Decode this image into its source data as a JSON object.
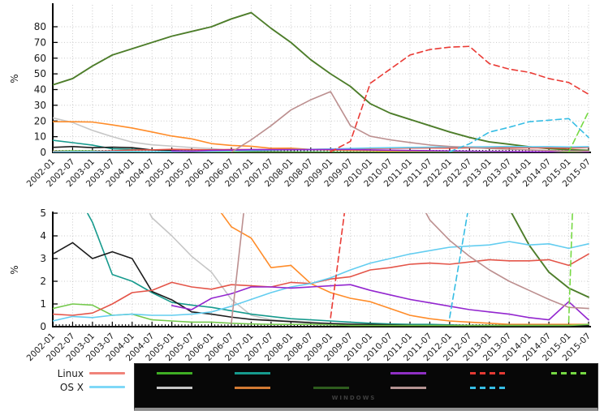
{
  "figure": {
    "background": "#ffffff",
    "axis_color": "#000000",
    "grid_color": "#c9c9c9"
  },
  "chart_data": {
    "type": "line",
    "title": "",
    "categories": [
      "2002-01",
      "2002-07",
      "2003-01",
      "2003-07",
      "2004-01",
      "2004-07",
      "2005-01",
      "2005-07",
      "2006-01",
      "2006-07",
      "2007-01",
      "2007-07",
      "2008-01",
      "2008-07",
      "2009-01",
      "2009-07",
      "2010-01",
      "2010-07",
      "2011-01",
      "2011-07",
      "2012-01",
      "2012-07",
      "2013-01",
      "2013-07",
      "2014-01",
      "2014-07",
      "2015-01",
      "2015-07"
    ],
    "x_tick_rotation": -45,
    "panels": [
      {
        "id": "top",
        "ylabel": "%",
        "ylim": [
          0,
          94
        ],
        "yticks": [
          0,
          10,
          20,
          30,
          40,
          50,
          60,
          70,
          80
        ],
        "grid": true,
        "legend": "none"
      },
      {
        "id": "bottom",
        "ylabel": "%",
        "ylim": [
          0,
          5
        ],
        "yticks": [
          0,
          1,
          2,
          3,
          4,
          5
        ],
        "grid": true,
        "legend": "none"
      }
    ],
    "series": [
      {
        "name": "green-dark",
        "color": "#4d7d2a",
        "dash": false,
        "values": [
          43,
          47,
          55,
          62,
          66,
          70,
          74,
          77,
          80,
          85,
          89,
          79,
          70,
          59,
          50,
          42,
          31,
          25,
          21,
          17,
          13,
          9.5,
          6.7,
          5.2,
          3.6,
          2.4,
          1.7,
          1.3
        ]
      },
      {
        "name": "gray",
        "color": "#c6c6c6",
        "dash": false,
        "values": [
          22,
          19,
          14,
          10,
          6.5,
          4.8,
          4.0,
          3.1,
          2.4,
          1.2,
          0.5,
          0.3,
          0.25,
          0.2,
          0.15,
          0.15,
          0.1,
          0.1,
          0.1,
          0.05,
          0.05,
          0.05,
          0.05,
          0.05,
          0.05,
          0.05,
          0.05,
          0.05
        ]
      },
      {
        "name": "orange",
        "color": "#ff8c29",
        "dash": false,
        "values": [
          19.5,
          19.5,
          19.3,
          17.5,
          15.5,
          13.0,
          10.4,
          8.6,
          5.6,
          4.4,
          3.9,
          2.6,
          2.7,
          1.9,
          1.5,
          1.25,
          1.1,
          0.8,
          0.5,
          0.35,
          0.25,
          0.2,
          0.15,
          0.1,
          0.1,
          0.1,
          0.1,
          0.1
        ]
      },
      {
        "name": "teal",
        "color": "#169a8d",
        "dash": false,
        "values": [
          7.7,
          6.2,
          4.6,
          2.3,
          2.0,
          1.5,
          1.07,
          0.95,
          0.85,
          0.7,
          0.55,
          0.45,
          0.35,
          0.3,
          0.25,
          0.2,
          0.15,
          0.12,
          0.1,
          0.1,
          0.08,
          0.05,
          0.05,
          0.05,
          0.05,
          0.05,
          0.05,
          0.05
        ]
      },
      {
        "name": "black",
        "color": "#1c1c1c",
        "dash": false,
        "values": [
          3.2,
          3.7,
          3.0,
          3.3,
          3.0,
          1.55,
          1.18,
          0.65,
          0.55,
          0.42,
          0.32,
          0.27,
          0.22,
          0.17,
          0.13,
          0.1,
          0.1,
          0.08,
          0.06,
          0.05,
          0.05,
          0.05,
          0.05,
          0.05,
          0.05,
          0.05,
          0.05,
          0.05
        ]
      },
      {
        "name": "green-light",
        "color": "#74c94c",
        "dash": false,
        "values": [
          0.8,
          1.0,
          0.95,
          0.5,
          0.55,
          0.3,
          0.25,
          0.2,
          0.2,
          0.15,
          0.12,
          0.1,
          0.1,
          0.1,
          0.08,
          0.05,
          0.05,
          0.05,
          0.05,
          0.05,
          0.05,
          0.05,
          0.05,
          0.05,
          0.05,
          0.05,
          0.05,
          0.1
        ]
      },
      {
        "name": "linux-red",
        "color": "#e45549",
        "dash": false,
        "values": [
          0.55,
          0.5,
          0.6,
          1.0,
          1.5,
          1.6,
          1.95,
          1.75,
          1.65,
          1.85,
          1.8,
          1.75,
          1.95,
          1.9,
          2.1,
          2.2,
          2.5,
          2.6,
          2.75,
          2.8,
          2.75,
          2.85,
          2.95,
          2.9,
          2.9,
          2.95,
          2.7,
          3.2
        ]
      },
      {
        "name": "osx-blue",
        "color": "#63cdf0",
        "dash": false,
        "values": [
          0.25,
          0.45,
          0.4,
          0.5,
          0.55,
          0.5,
          0.5,
          0.55,
          0.65,
          0.9,
          1.2,
          1.5,
          1.75,
          1.9,
          2.15,
          2.5,
          2.8,
          3.0,
          3.2,
          3.35,
          3.5,
          3.55,
          3.6,
          3.75,
          3.6,
          3.65,
          3.45,
          3.65
        ]
      },
      {
        "name": "purple",
        "color": "#9326cf",
        "dash": false,
        "values": [
          null,
          null,
          null,
          null,
          null,
          null,
          0.93,
          0.75,
          1.25,
          1.45,
          1.75,
          1.75,
          1.7,
          1.75,
          1.8,
          1.85,
          1.6,
          1.4,
          1.2,
          1.05,
          0.9,
          0.75,
          0.65,
          0.55,
          0.4,
          0.3,
          1.1,
          0.3
        ]
      },
      {
        "name": "tan",
        "color": "#bc8f8f",
        "dash": false,
        "values": [
          null,
          null,
          null,
          null,
          null,
          null,
          null,
          null,
          null,
          0.15,
          8,
          17,
          27,
          33.5,
          38.7,
          17,
          10.3,
          8,
          6.3,
          4.7,
          3.8,
          3.1,
          2.5,
          2.0,
          1.6,
          1.2,
          0.85,
          0.8
        ]
      },
      {
        "name": "red-dashed",
        "color": "#ea3b35",
        "dash": true,
        "values": [
          null,
          null,
          null,
          null,
          null,
          null,
          null,
          null,
          null,
          null,
          null,
          null,
          null,
          null,
          0.4,
          7,
          44,
          53,
          62,
          65.5,
          67,
          67.5,
          56.5,
          53,
          51,
          47,
          44.5,
          37
        ]
      },
      {
        "name": "cyan-dashed",
        "color": "#36bde4",
        "dash": true,
        "values": [
          null,
          null,
          null,
          null,
          null,
          null,
          null,
          null,
          null,
          null,
          null,
          null,
          null,
          null,
          null,
          null,
          null,
          null,
          null,
          null,
          0.4,
          5.5,
          12.9,
          16,
          19.5,
          20.5,
          21.5,
          9.5
        ]
      },
      {
        "name": "green-dashed",
        "color": "#76d943",
        "dash": true,
        "values": [
          null,
          null,
          null,
          null,
          null,
          null,
          null,
          null,
          null,
          null,
          null,
          null,
          null,
          null,
          null,
          null,
          null,
          null,
          null,
          null,
          null,
          null,
          null,
          null,
          null,
          null,
          0.2,
          26
        ]
      }
    ]
  },
  "legend": {
    "left_items": [
      {
        "label": "Linux",
        "color": "#f0837a"
      },
      {
        "label": "OS X",
        "color": "#7fd8f7"
      }
    ],
    "box": {
      "watermark": "WINDOWS",
      "background": "#070707",
      "samples": [
        {
          "col": 0,
          "row": 0,
          "color": "#3fae24",
          "dash": false
        },
        {
          "col": 0,
          "row": 1,
          "color": "#c6c6c6",
          "dash": false
        },
        {
          "col": 1,
          "row": 0,
          "color": "#169a8d",
          "dash": false
        },
        {
          "col": 1,
          "row": 1,
          "color": "#d27a33",
          "dash": false
        },
        {
          "col": 2,
          "row": 1,
          "color": "#2e5c1e",
          "dash": false
        },
        {
          "col": 3,
          "row": 0,
          "color": "#8f2fc4",
          "dash": false
        },
        {
          "col": 3,
          "row": 1,
          "color": "#b49392",
          "dash": false
        },
        {
          "col": 4,
          "row": 0,
          "color": "#e43a33",
          "dash": true
        },
        {
          "col": 4,
          "row": 1,
          "color": "#36bde4",
          "dash": true
        },
        {
          "col": 5,
          "row": 0,
          "color": "#76d943",
          "dash": true
        }
      ]
    }
  }
}
